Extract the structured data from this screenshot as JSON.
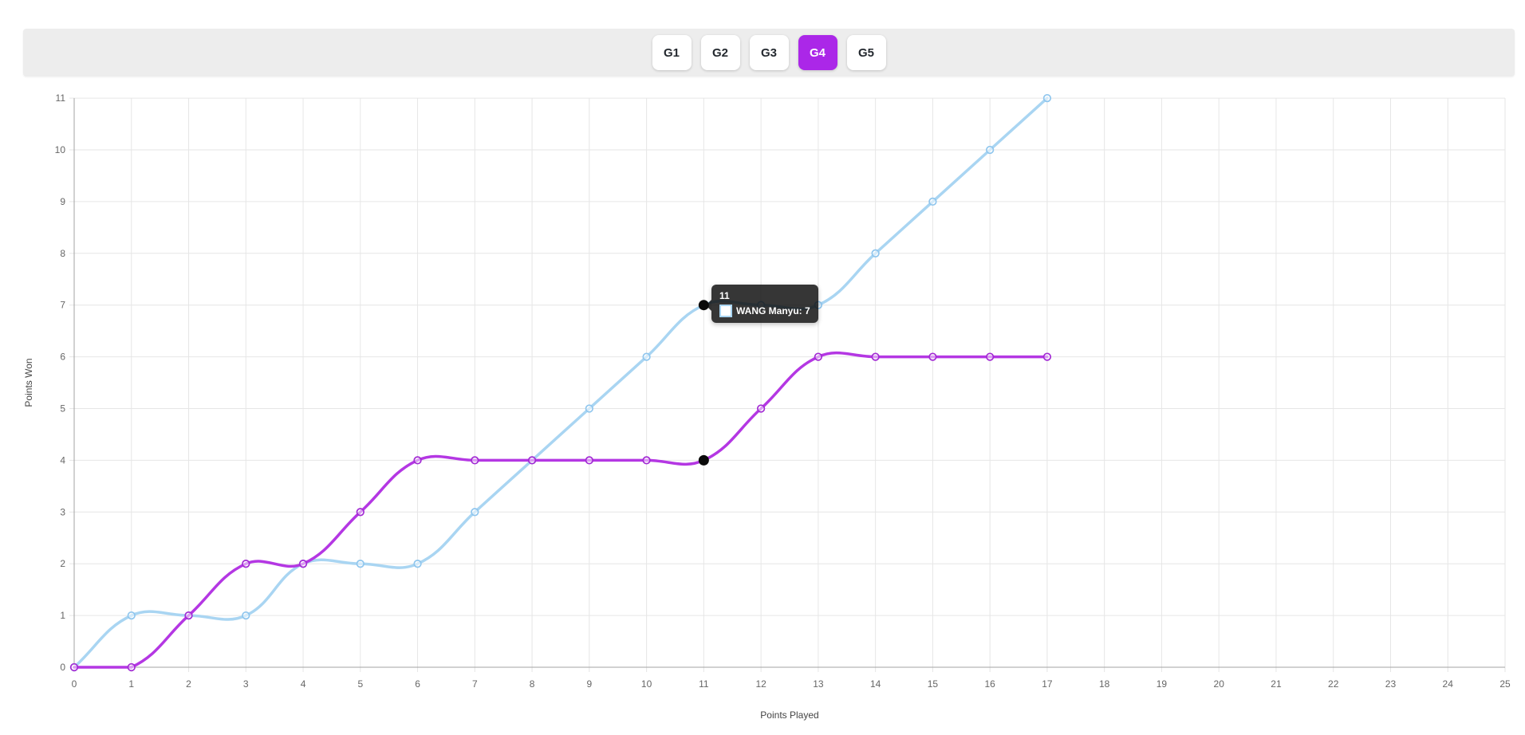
{
  "toolbar": {
    "buttons": [
      {
        "label": "G1",
        "active": false
      },
      {
        "label": "G2",
        "active": false
      },
      {
        "label": "G3",
        "active": false
      },
      {
        "label": "G4",
        "active": true
      },
      {
        "label": "G5",
        "active": false
      }
    ],
    "active_bg": "#ab27e8"
  },
  "chart_data": {
    "type": "line",
    "title": "",
    "xlabel": "Points Played",
    "ylabel": "Points Won",
    "xlim": [
      0,
      25
    ],
    "ylim": [
      0,
      11
    ],
    "x_tick_step": 1,
    "y_tick_step": 1,
    "grid": true,
    "legend_position": "none",
    "x": [
      0,
      1,
      2,
      3,
      4,
      5,
      6,
      7,
      8,
      9,
      10,
      11,
      12,
      13,
      14,
      15,
      16,
      17
    ],
    "series": [
      {
        "name": "WANG Manyu",
        "color": "#a9d5f2",
        "marker_stroke": "#8fc6ee",
        "values": [
          0,
          1,
          1,
          1,
          2,
          2,
          2,
          3,
          4,
          5,
          6,
          7,
          7,
          7,
          8,
          9,
          10,
          11
        ]
      },
      {
        "name": "",
        "color": "#b437e3",
        "marker_stroke": "#a32bd4",
        "values": [
          0,
          0,
          1,
          2,
          2,
          3,
          4,
          4,
          4,
          4,
          4,
          4,
          5,
          6,
          6,
          6,
          6,
          6
        ]
      }
    ],
    "highlight_points": [
      {
        "x": 11,
        "y": 7
      },
      {
        "x": 11,
        "y": 4
      }
    ],
    "colors": {
      "grid": "#e6e6e6",
      "axis_border": "#a3a3a3",
      "tick_text": "#666666",
      "highlight_dot": "#0a0a0a"
    }
  },
  "tooltip": {
    "title": "11",
    "rows": [
      {
        "label": "WANG Manyu: 7",
        "swatch_border": "#a9d5f2",
        "swatch_fill": "#ffffff"
      }
    ]
  }
}
